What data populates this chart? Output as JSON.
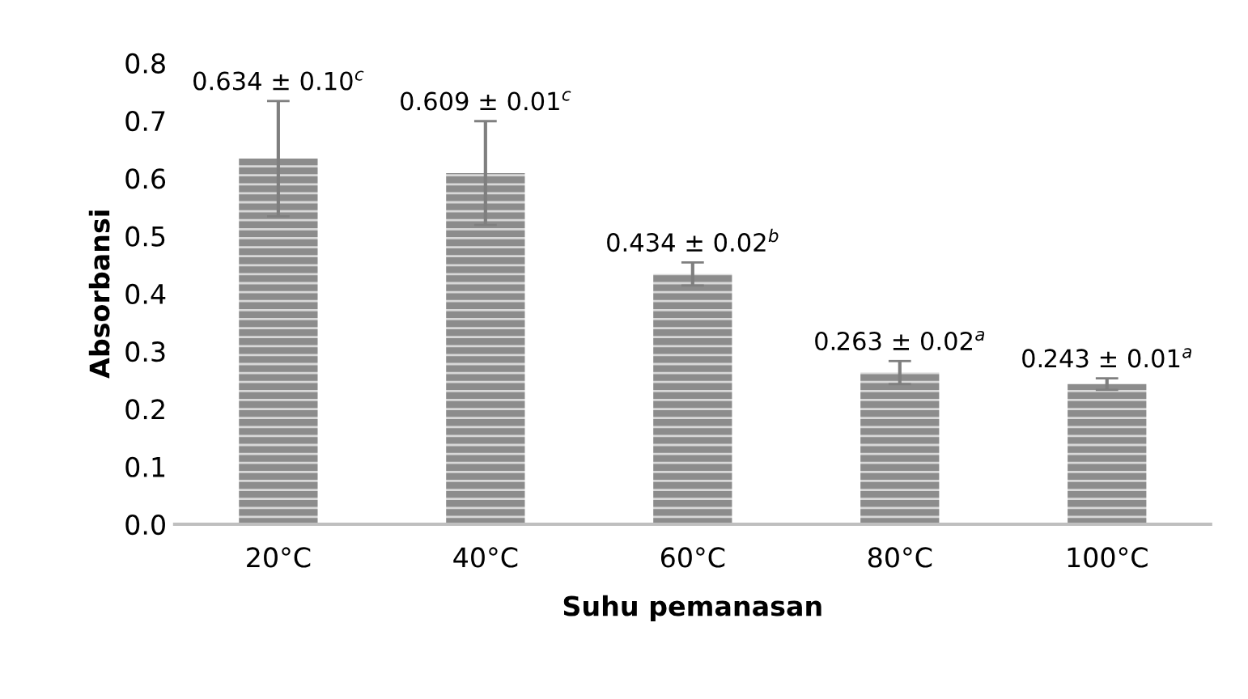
{
  "chart_data": {
    "type": "bar",
    "xlabel": "Suhu pemanasan",
    "ylabel": "Absorbansi",
    "categories": [
      "20°C",
      "40°C",
      "60°C",
      "80°C",
      "100°C"
    ],
    "values": [
      0.634,
      0.609,
      0.434,
      0.263,
      0.243
    ],
    "errors": [
      0.1,
      0.09,
      0.02,
      0.02,
      0.01
    ],
    "value_labels": [
      "0.634 ± 0.10$^{c}$",
      "0.609 ± 0.01$^{c}$",
      "0.434 ± 0.02$^{b}$",
      "0.263 ± 0.02$^{a}$",
      "0.243 ± 0.01$^{a}$"
    ],
    "color": "#8c8c8c",
    "ylim": [
      0,
      0.8
    ],
    "yticks": [
      {
        "value": 0,
        "label": "0.0"
      },
      0.1,
      0.2,
      0.3,
      0.4,
      0.5,
      0.6,
      0.7,
      0.8
    ],
    "grid": false,
    "legend": false
  }
}
